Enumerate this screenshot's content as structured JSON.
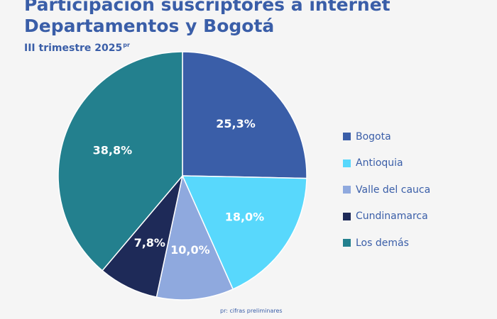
{
  "header": {
    "title_line_1": "Participación suscriptores a internet",
    "title_line_2": "Departamentos y  Bogotá",
    "subtitle": "III trimestre 2025",
    "subtitle_superscript": "pr"
  },
  "footnote": "pr: cifras preliminares",
  "chart_data": {
    "type": "pie",
    "title": "Participación suscriptores a internet Departamentos y  Bogotá",
    "subtitle": "III trimestre 2025pr",
    "legend_position": "right",
    "slices": [
      {
        "label": "Bogota",
        "value": 25.3,
        "display": "25,3%",
        "color": "#3a5ea8"
      },
      {
        "label": "Antioquia",
        "value": 18.0,
        "display": "18,0%",
        "color": "#58d8fc"
      },
      {
        "label": "Valle del cauca",
        "value": 10.0,
        "display": "10,0%",
        "color": "#8fa9de"
      },
      {
        "label": "Cundinamarca",
        "value": 7.8,
        "display": "7,8%",
        "color": "#1e2a58"
      },
      {
        "label": "Los demás",
        "value": 38.8,
        "display": "38,8%",
        "color": "#23808e"
      }
    ]
  }
}
